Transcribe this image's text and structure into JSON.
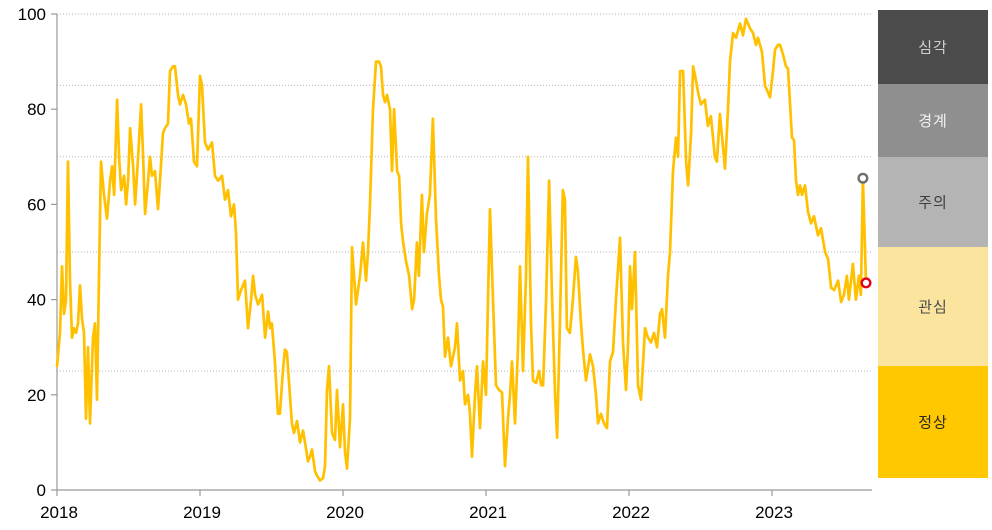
{
  "chart_data": {
    "type": "line",
    "title": "",
    "x_ticks": [
      "2018",
      "2019",
      "2020",
      "2021",
      "2022",
      "2023"
    ],
    "y_ticks": [
      0,
      20,
      40,
      60,
      80,
      100
    ],
    "ylim": [
      0,
      100
    ],
    "xlim_years": [
      2018.0,
      2023.72
    ],
    "gridlines_y": [
      25,
      50,
      70,
      85,
      100
    ],
    "grid_style": "dotted-horizontal",
    "line_color": "#FFC000",
    "axis_color": "#999999",
    "gridline_color": "#b3b3b3",
    "tick_label_color": "#000000",
    "points": [
      [
        2018.0,
        26
      ],
      [
        2018.021,
        33
      ],
      [
        2018.035,
        47
      ],
      [
        2018.049,
        37
      ],
      [
        2018.063,
        40
      ],
      [
        2018.077,
        69
      ],
      [
        2018.091,
        44
      ],
      [
        2018.105,
        32
      ],
      [
        2018.119,
        34
      ],
      [
        2018.133,
        33
      ],
      [
        2018.147,
        35
      ],
      [
        2018.161,
        43
      ],
      [
        2018.175,
        36
      ],
      [
        2018.189,
        33
      ],
      [
        2018.203,
        15
      ],
      [
        2018.217,
        30
      ],
      [
        2018.231,
        14
      ],
      [
        2018.252,
        32
      ],
      [
        2018.266,
        35
      ],
      [
        2018.28,
        19
      ],
      [
        2018.294,
        45
      ],
      [
        2018.308,
        69
      ],
      [
        2018.329,
        62
      ],
      [
        2018.35,
        57
      ],
      [
        2018.371,
        65
      ],
      [
        2018.385,
        68
      ],
      [
        2018.399,
        62
      ],
      [
        2018.42,
        82
      ],
      [
        2018.434,
        70
      ],
      [
        2018.448,
        63
      ],
      [
        2018.469,
        66
      ],
      [
        2018.483,
        60
      ],
      [
        2018.497,
        65
      ],
      [
        2018.511,
        76
      ],
      [
        2018.532,
        68
      ],
      [
        2018.546,
        60
      ],
      [
        2018.567,
        70
      ],
      [
        2018.588,
        81
      ],
      [
        2018.602,
        70
      ],
      [
        2018.616,
        58
      ],
      [
        2018.637,
        65
      ],
      [
        2018.65,
        70
      ],
      [
        2018.664,
        66
      ],
      [
        2018.685,
        67
      ],
      [
        2018.706,
        59
      ],
      [
        2018.72,
        65
      ],
      [
        2018.741,
        75
      ],
      [
        2018.755,
        76
      ],
      [
        2018.776,
        77
      ],
      [
        2018.79,
        88
      ],
      [
        2018.811,
        89
      ],
      [
        2018.825,
        89
      ],
      [
        2018.846,
        83
      ],
      [
        2018.86,
        81
      ],
      [
        2018.881,
        83
      ],
      [
        2018.902,
        81
      ],
      [
        2018.923,
        77
      ],
      [
        2018.937,
        78
      ],
      [
        2018.958,
        69
      ],
      [
        2018.979,
        68
      ],
      [
        2019.0,
        87
      ],
      [
        2019.014,
        85
      ],
      [
        2019.035,
        73
      ],
      [
        2019.056,
        71.5
      ],
      [
        2019.084,
        73
      ],
      [
        2019.105,
        66
      ],
      [
        2019.126,
        65
      ],
      [
        2019.154,
        66
      ],
      [
        2019.175,
        61
      ],
      [
        2019.196,
        63
      ],
      [
        2019.217,
        57.5
      ],
      [
        2019.238,
        60
      ],
      [
        2019.252,
        54
      ],
      [
        2019.266,
        40
      ],
      [
        2019.287,
        42
      ],
      [
        2019.315,
        44
      ],
      [
        2019.336,
        34
      ],
      [
        2019.357,
        40
      ],
      [
        2019.371,
        45
      ],
      [
        2019.385,
        41
      ],
      [
        2019.406,
        39
      ],
      [
        2019.42,
        40
      ],
      [
        2019.434,
        41
      ],
      [
        2019.455,
        32
      ],
      [
        2019.476,
        37.5
      ],
      [
        2019.49,
        34
      ],
      [
        2019.503,
        35
      ],
      [
        2019.524,
        27
      ],
      [
        2019.545,
        16
      ],
      [
        2019.559,
        16
      ],
      [
        2019.58,
        25
      ],
      [
        2019.594,
        29.5
      ],
      [
        2019.608,
        29
      ],
      [
        2019.629,
        20
      ],
      [
        2019.643,
        14
      ],
      [
        2019.657,
        12
      ],
      [
        2019.678,
        14.5
      ],
      [
        2019.699,
        10
      ],
      [
        2019.72,
        12.5
      ],
      [
        2019.734,
        10
      ],
      [
        2019.755,
        6
      ],
      [
        2019.769,
        7
      ],
      [
        2019.783,
        8.5
      ],
      [
        2019.804,
        4
      ],
      [
        2019.818,
        3
      ],
      [
        2019.839,
        2
      ],
      [
        2019.86,
        2.5
      ],
      [
        2019.874,
        5
      ],
      [
        2019.888,
        21
      ],
      [
        2019.902,
        26
      ],
      [
        2019.923,
        12
      ],
      [
        2019.944,
        10.5
      ],
      [
        2019.958,
        21
      ],
      [
        2019.979,
        9
      ],
      [
        2020.0,
        18
      ],
      [
        2020.014,
        8
      ],
      [
        2020.028,
        4.5
      ],
      [
        2020.049,
        15
      ],
      [
        2020.063,
        51
      ],
      [
        2020.077,
        45
      ],
      [
        2020.091,
        39
      ],
      [
        2020.105,
        42
      ],
      [
        2020.119,
        45
      ],
      [
        2020.14,
        52
      ],
      [
        2020.161,
        44
      ],
      [
        2020.175,
        50
      ],
      [
        2020.189,
        60
      ],
      [
        2020.21,
        80
      ],
      [
        2020.231,
        90
      ],
      [
        2020.252,
        90
      ],
      [
        2020.266,
        89
      ],
      [
        2020.28,
        83
      ],
      [
        2020.294,
        81.5
      ],
      [
        2020.308,
        83
      ],
      [
        2020.329,
        80
      ],
      [
        2020.343,
        67
      ],
      [
        2020.357,
        80
      ],
      [
        2020.378,
        67
      ],
      [
        2020.392,
        66
      ],
      [
        2020.406,
        56
      ],
      [
        2020.42,
        52
      ],
      [
        2020.441,
        48
      ],
      [
        2020.462,
        45
      ],
      [
        2020.483,
        38
      ],
      [
        2020.497,
        40
      ],
      [
        2020.517,
        52
      ],
      [
        2020.531,
        45
      ],
      [
        2020.552,
        62
      ],
      [
        2020.566,
        50
      ],
      [
        2020.587,
        58
      ],
      [
        2020.608,
        62
      ],
      [
        2020.629,
        78
      ],
      [
        2020.65,
        57
      ],
      [
        2020.671,
        45
      ],
      [
        2020.685,
        40
      ],
      [
        2020.699,
        38.5
      ],
      [
        2020.713,
        28
      ],
      [
        2020.734,
        32
      ],
      [
        2020.755,
        26
      ],
      [
        2020.769,
        28
      ],
      [
        2020.783,
        30
      ],
      [
        2020.797,
        35
      ],
      [
        2020.818,
        23
      ],
      [
        2020.839,
        25
      ],
      [
        2020.853,
        18
      ],
      [
        2020.874,
        20
      ],
      [
        2020.888,
        16
      ],
      [
        2020.902,
        7
      ],
      [
        2020.923,
        20
      ],
      [
        2020.937,
        26
      ],
      [
        2020.958,
        13
      ],
      [
        2020.979,
        27
      ],
      [
        2021.0,
        20
      ],
      [
        2021.014,
        40
      ],
      [
        2021.028,
        59
      ],
      [
        2021.049,
        40
      ],
      [
        2021.07,
        22
      ],
      [
        2021.091,
        21
      ],
      [
        2021.112,
        20.5
      ],
      [
        2021.133,
        5
      ],
      [
        2021.154,
        15
      ],
      [
        2021.168,
        20
      ],
      [
        2021.182,
        27
      ],
      [
        2021.203,
        14
      ],
      [
        2021.224,
        30
      ],
      [
        2021.238,
        47
      ],
      [
        2021.259,
        25
      ],
      [
        2021.28,
        45
      ],
      [
        2021.294,
        70
      ],
      [
        2021.315,
        35
      ],
      [
        2021.329,
        23
      ],
      [
        2021.35,
        22.5
      ],
      [
        2021.371,
        25
      ],
      [
        2021.385,
        22
      ],
      [
        2021.399,
        22
      ],
      [
        2021.42,
        40
      ],
      [
        2021.441,
        65
      ],
      [
        2021.462,
        40
      ],
      [
        2021.483,
        20
      ],
      [
        2021.497,
        11
      ],
      [
        2021.517,
        35
      ],
      [
        2021.538,
        63
      ],
      [
        2021.552,
        61
      ],
      [
        2021.566,
        34
      ],
      [
        2021.587,
        33
      ],
      [
        2021.608,
        40
      ],
      [
        2021.629,
        49
      ],
      [
        2021.643,
        46
      ],
      [
        2021.664,
        35
      ],
      [
        2021.678,
        29.5
      ],
      [
        2021.699,
        23
      ],
      [
        2021.727,
        28.5
      ],
      [
        2021.748,
        26
      ],
      [
        2021.769,
        20
      ],
      [
        2021.783,
        14
      ],
      [
        2021.804,
        16
      ],
      [
        2021.825,
        14
      ],
      [
        2021.846,
        13
      ],
      [
        2021.867,
        27
      ],
      [
        2021.888,
        29
      ],
      [
        2021.909,
        40
      ],
      [
        2021.937,
        53
      ],
      [
        2021.958,
        31
      ],
      [
        2021.979,
        21
      ],
      [
        2021.993,
        30
      ],
      [
        2022.007,
        47
      ],
      [
        2022.021,
        38
      ],
      [
        2022.042,
        50
      ],
      [
        2022.063,
        22
      ],
      [
        2022.084,
        19
      ],
      [
        2022.112,
        34
      ],
      [
        2022.133,
        32
      ],
      [
        2022.154,
        31
      ],
      [
        2022.175,
        33
      ],
      [
        2022.196,
        30
      ],
      [
        2022.217,
        37
      ],
      [
        2022.231,
        38
      ],
      [
        2022.252,
        32
      ],
      [
        2022.273,
        45
      ],
      [
        2022.287,
        50
      ],
      [
        2022.308,
        67
      ],
      [
        2022.329,
        74
      ],
      [
        2022.343,
        70
      ],
      [
        2022.357,
        88
      ],
      [
        2022.378,
        88
      ],
      [
        2022.399,
        69
      ],
      [
        2022.413,
        64
      ],
      [
        2022.434,
        75
      ],
      [
        2022.448,
        89
      ],
      [
        2022.462,
        87
      ],
      [
        2022.483,
        83.5
      ],
      [
        2022.503,
        81
      ],
      [
        2022.531,
        82
      ],
      [
        2022.552,
        76.5
      ],
      [
        2022.573,
        78.5
      ],
      [
        2022.601,
        70
      ],
      [
        2022.615,
        69
      ],
      [
        2022.636,
        79
      ],
      [
        2022.657,
        72
      ],
      [
        2022.671,
        67.5
      ],
      [
        2022.692,
        80
      ],
      [
        2022.706,
        90
      ],
      [
        2022.727,
        96
      ],
      [
        2022.748,
        95
      ],
      [
        2022.776,
        98
      ],
      [
        2022.797,
        95.5
      ],
      [
        2022.818,
        99
      ],
      [
        2022.846,
        97
      ],
      [
        2022.867,
        96
      ],
      [
        2022.888,
        93.5
      ],
      [
        2022.902,
        95
      ],
      [
        2022.93,
        92
      ],
      [
        2022.951,
        85
      ],
      [
        2022.972,
        83.5
      ],
      [
        2022.986,
        82.5
      ],
      [
        2023.007,
        88
      ],
      [
        2023.021,
        92.5
      ],
      [
        2023.042,
        93.5
      ],
      [
        2023.056,
        93.5
      ],
      [
        2023.077,
        91.5
      ],
      [
        2023.098,
        89
      ],
      [
        2023.112,
        88.5
      ],
      [
        2023.14,
        74
      ],
      [
        2023.154,
        73.5
      ],
      [
        2023.168,
        65
      ],
      [
        2023.182,
        62
      ],
      [
        2023.196,
        64
      ],
      [
        2023.21,
        62
      ],
      [
        2023.231,
        64
      ],
      [
        2023.252,
        58.5
      ],
      [
        2023.273,
        56
      ],
      [
        2023.294,
        57.5
      ],
      [
        2023.322,
        53.5
      ],
      [
        2023.343,
        55
      ],
      [
        2023.371,
        50
      ],
      [
        2023.392,
        48.5
      ],
      [
        2023.413,
        42.5
      ],
      [
        2023.434,
        42
      ],
      [
        2023.462,
        44
      ],
      [
        2023.483,
        39.5
      ],
      [
        2023.503,
        41
      ],
      [
        2023.524,
        45
      ],
      [
        2023.538,
        40
      ],
      [
        2023.566,
        47.5
      ],
      [
        2023.587,
        40
      ],
      [
        2023.608,
        45
      ],
      [
        2023.622,
        41
      ],
      [
        2023.636,
        65.5
      ],
      [
        2023.657,
        43.5
      ]
    ],
    "end_markers": [
      {
        "name": "gray-open-circle",
        "year": 2023.636,
        "value": 65.5,
        "color": "#6F6F6F"
      },
      {
        "name": "red-open-circle",
        "year": 2023.657,
        "value": 43.5,
        "color": "#E2001A"
      }
    ],
    "legend_bands": [
      {
        "label": "심각",
        "range": [
          85,
          100
        ],
        "color": "#4B4B4B",
        "text_color": "#CFCFCF"
      },
      {
        "label": "경계",
        "range": [
          70,
          85
        ],
        "color": "#8F8F8F",
        "text_color": "#F2F2F2"
      },
      {
        "label": "주의",
        "range": [
          50,
          70
        ],
        "color": "#B4B4B4",
        "text_color": "#3D3D3D"
      },
      {
        "label": "관심",
        "range": [
          25,
          50
        ],
        "color": "#FBE49E",
        "text_color": "#4A4A4A"
      },
      {
        "label": "정상",
        "range": [
          0,
          25
        ],
        "color": "#FFC800",
        "text_color": "#262626"
      }
    ]
  }
}
